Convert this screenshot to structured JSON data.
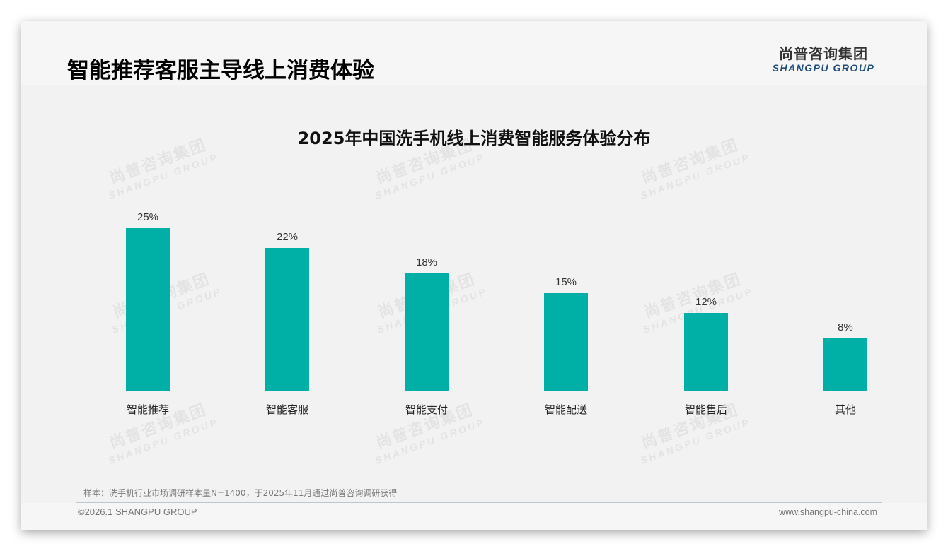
{
  "header": {
    "title": "智能推荐客服主导线上消费体验",
    "logo_cn": "尚普咨询集团",
    "logo_en": "SHANGPU GROUP"
  },
  "watermark": {
    "cn": "尚普咨询集团",
    "en": "SHANGPU GROUP"
  },
  "colors": {
    "bar": "#00b0a6",
    "logo_en": "#1f4e79",
    "background": "#f2f2f2"
  },
  "chart_data": {
    "type": "bar",
    "title": "2025年中国洗手机线上消费智能服务体验分布",
    "categories": [
      "智能推荐",
      "智能客服",
      "智能支付",
      "智能配送",
      "智能售后",
      "其他"
    ],
    "values": [
      25,
      22,
      18,
      15,
      12,
      8
    ],
    "value_labels": [
      "25%",
      "22%",
      "18%",
      "15%",
      "12%",
      "8%"
    ],
    "unit": "%",
    "xlabel": "",
    "ylabel": "",
    "ylim": [
      0,
      30
    ],
    "grid": false,
    "legend": "none"
  },
  "footer": {
    "note": "样本：洗手机行业市场调研样本量N=1400，于2025年11月通过尚普咨询调研获得",
    "copyright": "©2026.1 SHANGPU GROUP",
    "website": "www.shangpu-china.com"
  }
}
